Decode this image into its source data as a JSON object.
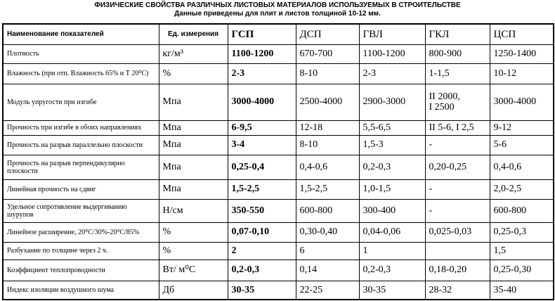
{
  "header": {
    "title": "ФИЗИЧЕСКИЕ СВОЙСТВА РАЗЛИЧНЫХ ЛИСТОВЫХ МАТЕРИАЛОВ ИСПОЛЬЗУЕМЫХ В СТРОИТЕЛЬСТВЕ",
    "subtitle": "Данные приведены для плит и листов толщиной 10-12 мм."
  },
  "table": {
    "columns": [
      "Наименование показателей",
      "Ед. измерения",
      "ГСП",
      "ДСП",
      "ГВЛ",
      "ГКЛ",
      "ЦСП"
    ],
    "rows": [
      [
        "Плотность",
        "кг/м³",
        "1100-1200",
        "670-700",
        "1100-1200",
        "800-900",
        "1250-1400"
      ],
      [
        "Влажность (при отп. Влажность 65% и Т 20⁰С)",
        "%",
        "2-3",
        "8-10",
        "2-3",
        "1-1,5",
        "10-12"
      ],
      [
        "Модуль упругости при  изгибе",
        "Мпа",
        "3000-4000",
        "2500-4000",
        "2900-3000",
        "II 2000,\nI 2500",
        "3000-4000"
      ],
      [
        "Прочность при изгибе в обоих направлениях",
        "Мпа",
        "6-9,5",
        "12-18",
        "5,5-6,5",
        "II 5-6, I 2,5",
        "9-12"
      ],
      [
        "Прочность на разрыв параллельно плоскости",
        "Мпа",
        "3-4",
        "8-10",
        "1,5-3",
        "-",
        "5-6"
      ],
      [
        "Прочность на разрыв перпендикулярно плоскости",
        "Мпа",
        "0,25-0,4",
        "0,4-0,6",
        "0,2-0,3",
        "0,20-0,25",
        "0,4-0,6"
      ],
      [
        "Линейная прочность на сдвиг",
        "Мпа",
        "1,5-2,5",
        "1,5-2,5",
        "1,0-1,5",
        "-",
        "2,0-2,5"
      ],
      [
        "Удельное сопротивление выдергиванию шурупов",
        "Н/см",
        "350-550",
        "600-800",
        "300-400",
        "-",
        "600-800"
      ],
      [
        "Линейное расширение, 20⁰С/30%-20⁰С/85%",
        "%",
        "0,07-0,10",
        "0,30-0,40",
        "0,04-0,06",
        "0,025-0,03",
        "0,25-0,3"
      ],
      [
        "Разбухание по толщине через 2 ч.",
        "%",
        "2",
        "6",
        "1",
        null,
        "1,5"
      ],
      [
        "Коэффициент теплопроводности",
        "Вт/ м⁰С",
        "0,2-0,3",
        "0,14",
        "0,2-0,3",
        "0,18-0,20",
        "0,25-0,30"
      ],
      [
        "Индекс изоляции воздушного шума",
        "Дб",
        "30-35",
        "22-25",
        "30-35",
        "28-32",
        "35-40"
      ]
    ]
  }
}
